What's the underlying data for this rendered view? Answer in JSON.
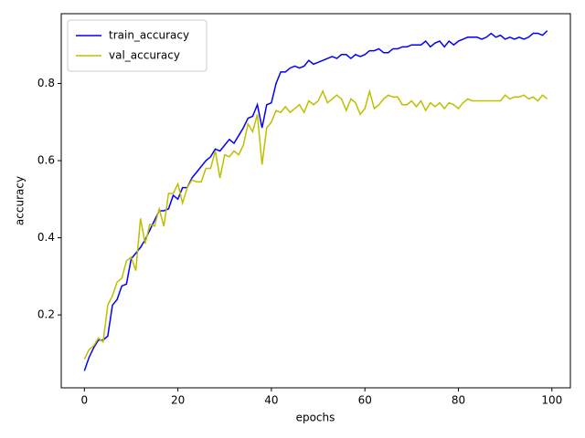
{
  "chart_data": {
    "type": "line",
    "x_label": "epochs",
    "y_label": "accuracy",
    "x": [
      0,
      1,
      2,
      3,
      4,
      5,
      6,
      7,
      8,
      9,
      10,
      11,
      12,
      13,
      14,
      15,
      16,
      17,
      18,
      19,
      20,
      21,
      22,
      23,
      24,
      25,
      26,
      27,
      28,
      29,
      30,
      31,
      32,
      33,
      34,
      35,
      36,
      37,
      38,
      39,
      40,
      41,
      42,
      43,
      44,
      45,
      46,
      47,
      48,
      49,
      50,
      51,
      52,
      53,
      54,
      55,
      56,
      57,
      58,
      59,
      60,
      61,
      62,
      63,
      64,
      65,
      66,
      67,
      68,
      69,
      70,
      71,
      72,
      73,
      74,
      75,
      76,
      77,
      78,
      79,
      80,
      81,
      82,
      83,
      84,
      85,
      86,
      87,
      88,
      89,
      90,
      91,
      92,
      93,
      94,
      95,
      96,
      97,
      98,
      99
    ],
    "series": [
      {
        "name": "train_accuracy",
        "color": "#0000ff",
        "values": [
          0.055,
          0.09,
          0.115,
          0.135,
          0.135,
          0.145,
          0.225,
          0.24,
          0.275,
          0.28,
          0.345,
          0.36,
          0.375,
          0.395,
          0.42,
          0.445,
          0.47,
          0.47,
          0.475,
          0.51,
          0.5,
          0.53,
          0.53,
          0.555,
          0.57,
          0.585,
          0.6,
          0.61,
          0.63,
          0.625,
          0.64,
          0.655,
          0.645,
          0.665,
          0.685,
          0.71,
          0.715,
          0.745,
          0.685,
          0.745,
          0.75,
          0.8,
          0.83,
          0.83,
          0.84,
          0.845,
          0.84,
          0.845,
          0.86,
          0.85,
          0.855,
          0.86,
          0.865,
          0.87,
          0.865,
          0.875,
          0.875,
          0.865,
          0.875,
          0.87,
          0.875,
          0.885,
          0.885,
          0.89,
          0.88,
          0.88,
          0.89,
          0.89,
          0.895,
          0.895,
          0.9,
          0.9,
          0.9,
          0.91,
          0.895,
          0.905,
          0.91,
          0.895,
          0.91,
          0.9,
          0.91,
          0.915,
          0.92,
          0.92,
          0.92,
          0.915,
          0.92,
          0.93,
          0.92,
          0.925,
          0.915,
          0.92,
          0.915,
          0.92,
          0.915,
          0.92,
          0.93,
          0.93,
          0.925,
          0.937
        ]
      },
      {
        "name": "val_accuracy",
        "color": "#bfbf00",
        "values": [
          0.085,
          0.11,
          0.12,
          0.14,
          0.13,
          0.225,
          0.25,
          0.285,
          0.295,
          0.34,
          0.35,
          0.315,
          0.45,
          0.385,
          0.435,
          0.43,
          0.475,
          0.43,
          0.515,
          0.515,
          0.54,
          0.49,
          0.53,
          0.55,
          0.545,
          0.545,
          0.58,
          0.58,
          0.625,
          0.555,
          0.615,
          0.61,
          0.625,
          0.615,
          0.64,
          0.695,
          0.675,
          0.72,
          0.59,
          0.685,
          0.7,
          0.73,
          0.725,
          0.74,
          0.725,
          0.735,
          0.745,
          0.725,
          0.755,
          0.745,
          0.755,
          0.78,
          0.75,
          0.76,
          0.77,
          0.76,
          0.73,
          0.76,
          0.75,
          0.72,
          0.735,
          0.78,
          0.735,
          0.745,
          0.76,
          0.77,
          0.765,
          0.765,
          0.745,
          0.745,
          0.755,
          0.74,
          0.755,
          0.73,
          0.75,
          0.74,
          0.75,
          0.735,
          0.75,
          0.745,
          0.735,
          0.75,
          0.76,
          0.755,
          0.755,
          0.755,
          0.755,
          0.755,
          0.755,
          0.755,
          0.77,
          0.76,
          0.765,
          0.765,
          0.77,
          0.76,
          0.765,
          0.755,
          0.77,
          0.76
        ]
      }
    ],
    "xlim": [
      -4.95,
      103.95
    ],
    "ylim": [
      0.011,
      0.981
    ],
    "xticks": [
      0,
      20,
      40,
      60,
      80,
      100
    ],
    "yticks": [
      0.2,
      0.4,
      0.6,
      0.8
    ],
    "legend": "upper left"
  }
}
